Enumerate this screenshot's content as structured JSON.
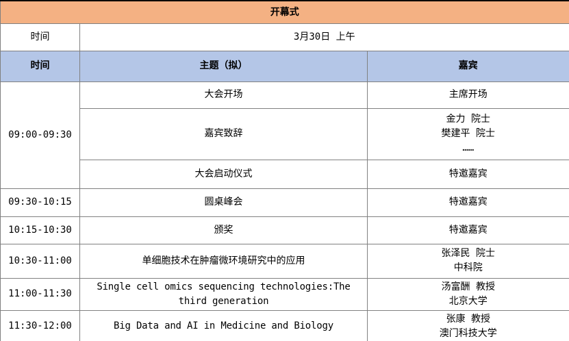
{
  "table": {
    "title": "开幕式",
    "date_row": {
      "label": "时间",
      "value": "3月30日 上午"
    },
    "header": {
      "time": "时间",
      "topic": "主题（拟）",
      "guest": "嘉宾"
    },
    "colors": {
      "title_bg": "#F4B183",
      "header_bg": "#B4C6E7",
      "border_inner": "#808080",
      "border_outer": "#000000"
    },
    "rows": [
      {
        "time": "09:00-09:30",
        "topic": "大会开场",
        "guest_lines": [
          "主席开场"
        ]
      },
      {
        "topic": "嘉宾致辞",
        "guest_lines": [
          "金力 院士",
          "樊建平 院士",
          "……"
        ]
      },
      {
        "topic": "大会启动仪式",
        "guest_lines": [
          "特邀嘉宾"
        ]
      },
      {
        "time": "09:30-10:15",
        "topic": "圆桌峰会",
        "guest_lines": [
          "特邀嘉宾"
        ]
      },
      {
        "time": "10:15-10:30",
        "topic": "颁奖",
        "guest_lines": [
          "特邀嘉宾"
        ]
      },
      {
        "time": "10:30-11:00",
        "topic": "单细胞技术在肿瘤微环境研究中的应用",
        "guest_lines": [
          "张泽民 院士",
          "中科院"
        ]
      },
      {
        "time": "11:00-11:30",
        "topic": "Single cell omics sequencing technologies:The third generation",
        "guest_lines": [
          "汤富酬 教授",
          "北京大学"
        ]
      },
      {
        "time": "11:30-12:00",
        "topic": "Big Data and AI in Medicine and Biology",
        "guest_lines": [
          "张康 教授",
          "澳门科技大学"
        ]
      }
    ]
  }
}
